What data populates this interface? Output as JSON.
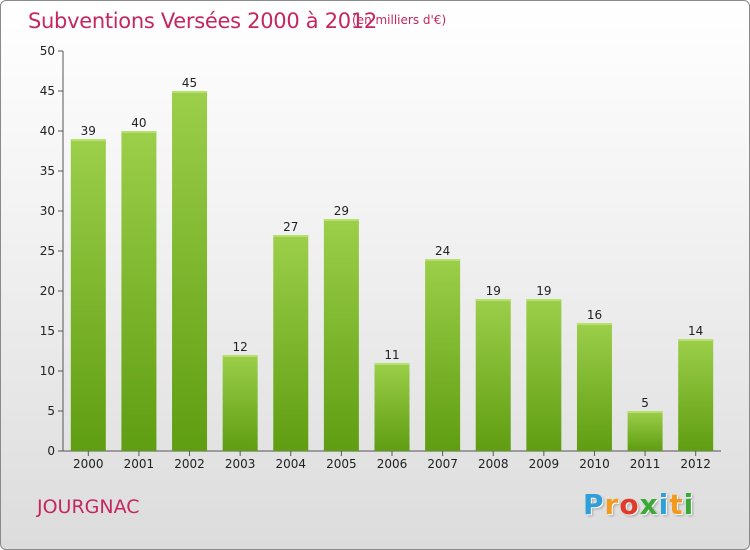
{
  "title": "Subventions Versées 2000 à 2012",
  "unit_note": "(en milliers d'€)",
  "commune": "JOURGNAC",
  "brand": {
    "letters": [
      "P",
      "r",
      "o",
      "x",
      "i",
      "t",
      "i"
    ],
    "colors": [
      "#2e9fd8",
      "#f39a1e",
      "#e23a2a",
      "#3aa935",
      "#2e9fd8",
      "#f39a1e",
      "#3aa935"
    ]
  },
  "colors": {
    "title": "#c4275f",
    "bar_top": "#9ccf4a",
    "bar_bottom": "#5f9d12",
    "axis": "#555555",
    "grid": "#e8e8e8"
  },
  "chart_data": {
    "type": "bar",
    "categories": [
      "2000",
      "2001",
      "2002",
      "2003",
      "2004",
      "2005",
      "2006",
      "2007",
      "2008",
      "2009",
      "2010",
      "2011",
      "2012"
    ],
    "values": [
      39,
      40,
      45,
      12,
      27,
      29,
      11,
      24,
      19,
      19,
      16,
      5,
      14
    ],
    "ylim": [
      0,
      50
    ],
    "yticks": [
      0,
      5,
      10,
      15,
      20,
      25,
      30,
      35,
      40,
      45,
      50
    ],
    "grid": false,
    "legend": "none"
  }
}
